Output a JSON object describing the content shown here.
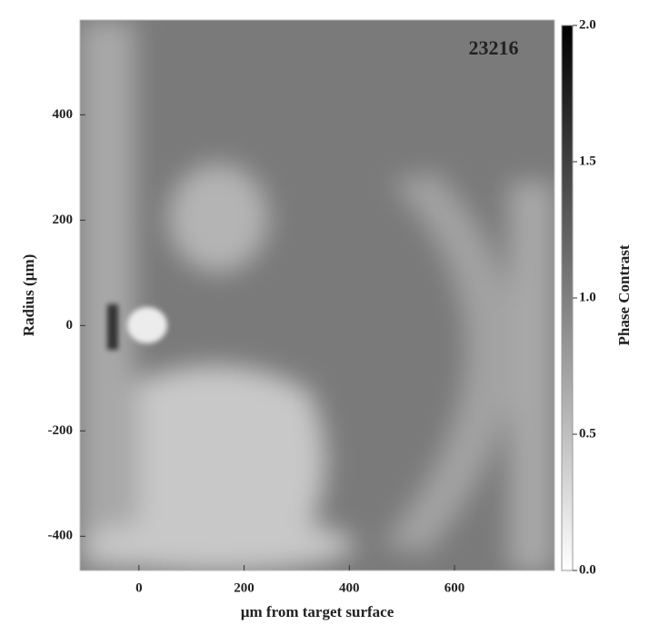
{
  "chart_data": {
    "type": "image",
    "xlabel": "µm from target surface",
    "ylabel": "Radius (µm)",
    "annotation": "23216",
    "annotation_color": "#e07b39",
    "xlim": [
      -112,
      790
    ],
    "xticks": [
      0,
      200,
      400,
      600
    ],
    "ylim": [
      -465,
      580
    ],
    "yticks": [
      -400,
      -200,
      0,
      200,
      400
    ],
    "colorbar": {
      "label": "Phase Contrast",
      "clim": [
        0,
        2
      ],
      "colors": [
        "#ffffff",
        "#000000"
      ],
      "ticks": [
        {
          "value": 0,
          "label": "0.0"
        },
        0.5,
        {
          "value": 1,
          "label": "1.0"
        },
        1.5,
        {
          "value": 2,
          "label": "2.0"
        }
      ]
    }
  }
}
